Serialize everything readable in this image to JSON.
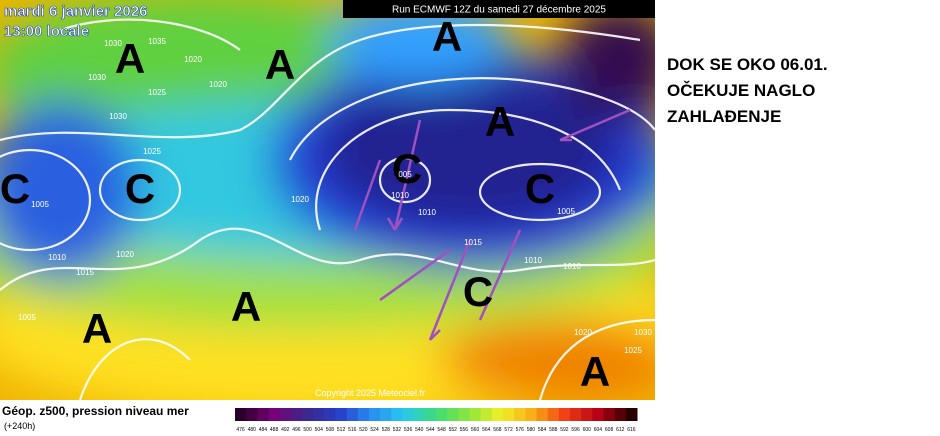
{
  "map": {
    "date": "mardi 6 janvier 2026",
    "time": "13:00 locale",
    "run": "Run ECMWF 12Z du samedi 27 décembre 2025",
    "copyright": "Copyright 2025 Meteociel.fr",
    "centers": [
      "A",
      "A",
      "A",
      "A",
      "C",
      "C",
      "C",
      "C",
      "C",
      "A",
      "A",
      "A"
    ],
    "isobar_labels": [
      "1030",
      "1035",
      "1020",
      "1030",
      "1025",
      "1020",
      "1030",
      "1025",
      "1020",
      "1005",
      "1020",
      "1010",
      "1015",
      "1005",
      "005",
      "1010",
      "1010",
      "1015",
      "1005",
      "1010",
      "1010",
      "1020",
      "1030",
      "1025"
    ]
  },
  "legend": {
    "title": "Géop. z500, pression niveau mer",
    "lead": "(+240h)",
    "ticks": [
      476,
      480,
      484,
      488,
      492,
      496,
      500,
      504,
      508,
      512,
      516,
      520,
      524,
      528,
      532,
      536,
      540,
      544,
      548,
      552,
      556,
      560,
      564,
      568,
      572,
      576,
      580,
      584,
      588,
      592,
      596,
      600,
      604,
      608,
      612,
      616
    ]
  },
  "annotation": {
    "lines": [
      "DOK SE OKO 06.01.",
      "OČEKUJE NAGLO",
      "ZAHLAĐENJE"
    ]
  }
}
